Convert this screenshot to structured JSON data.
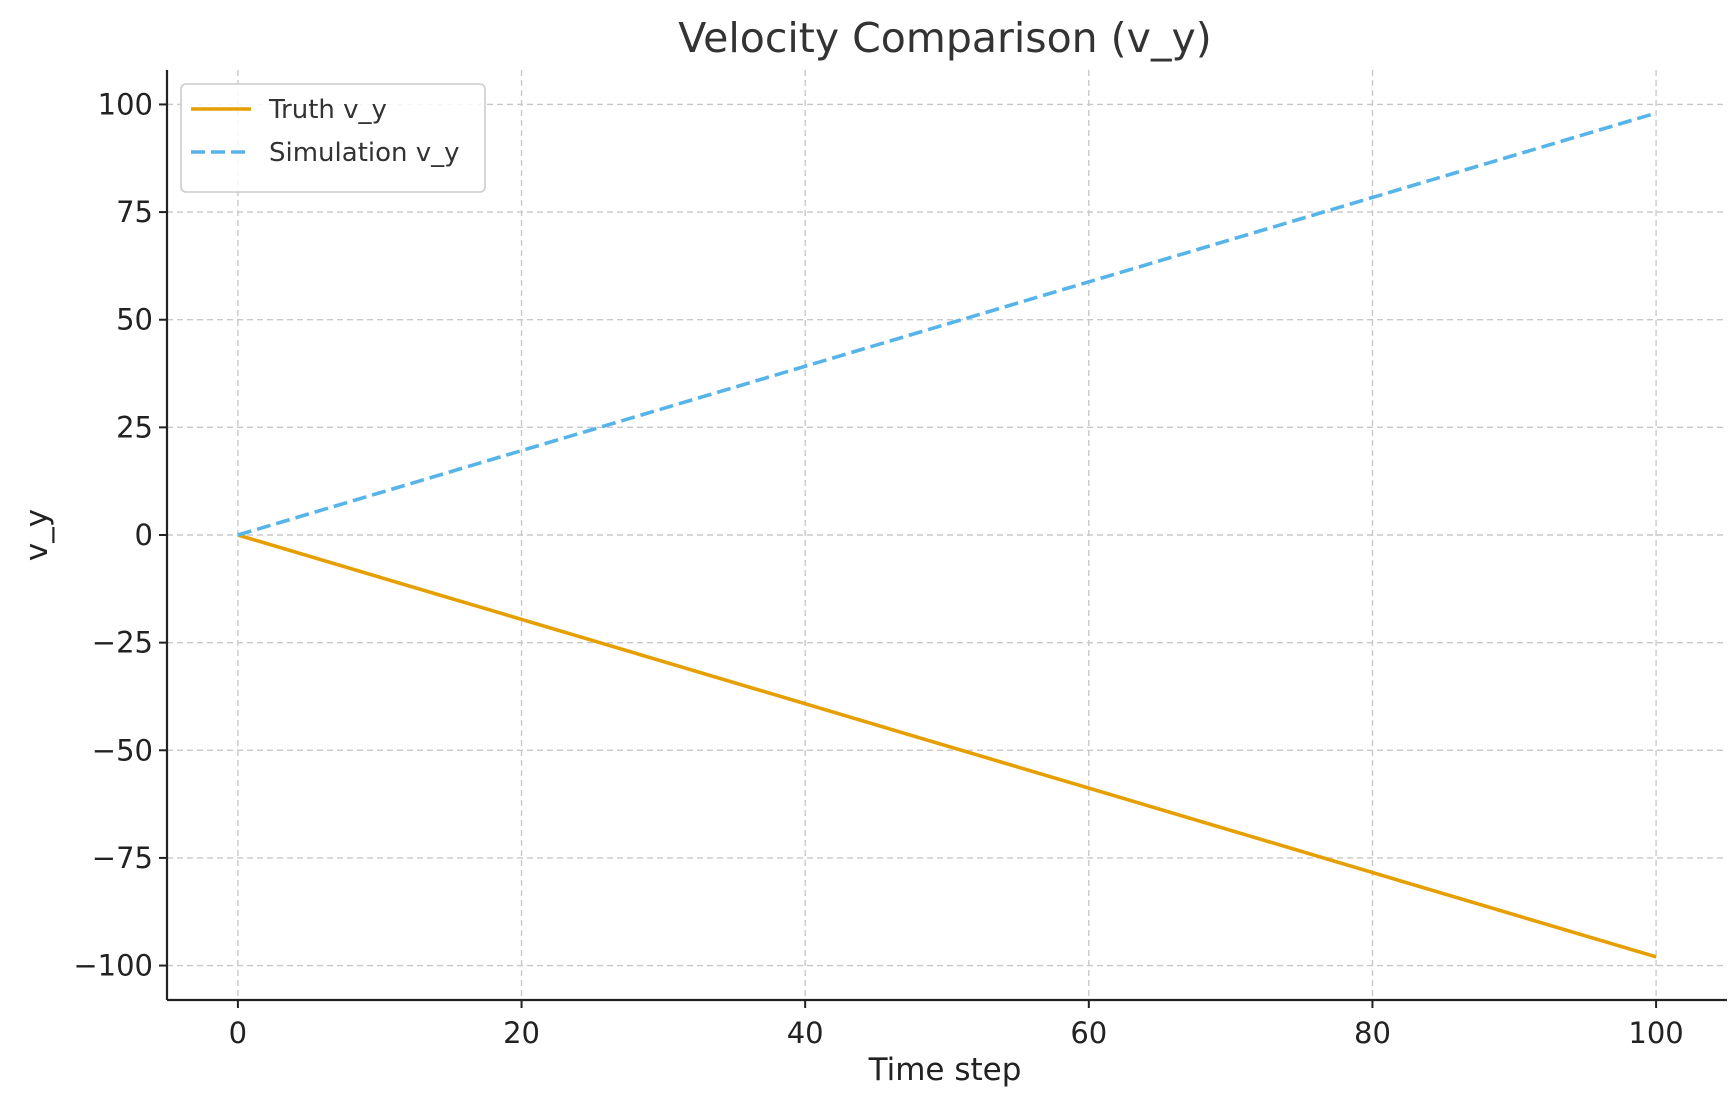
{
  "chart_data": {
    "type": "line",
    "title": "Velocity Comparison (v_y)",
    "xlabel": "Time step",
    "ylabel": "v_y",
    "xlim": [
      -5,
      105
    ],
    "ylim": [
      -108,
      108
    ],
    "xticks": [
      0,
      20,
      40,
      60,
      80,
      100
    ],
    "yticks": [
      100,
      75,
      50,
      25,
      0,
      -25,
      -50,
      -75,
      -100
    ],
    "x_tick_labels": [
      "0",
      "20",
      "40",
      "60",
      "80",
      "100"
    ],
    "y_tick_labels": [
      "100",
      "75",
      "50",
      "25",
      "0",
      "−25",
      "−50",
      "−75",
      "−100"
    ],
    "grid": true,
    "legend_position": "top-left",
    "series": [
      {
        "name": "Truth v_y",
        "color": "#E69F00",
        "style": "solid",
        "x": [
          0,
          100
        ],
        "y": [
          0,
          -98
        ]
      },
      {
        "name": "Simulation v_y",
        "color": "#56B4E9",
        "style": "dashed",
        "x": [
          0,
          100
        ],
        "y": [
          0,
          98
        ]
      }
    ]
  }
}
